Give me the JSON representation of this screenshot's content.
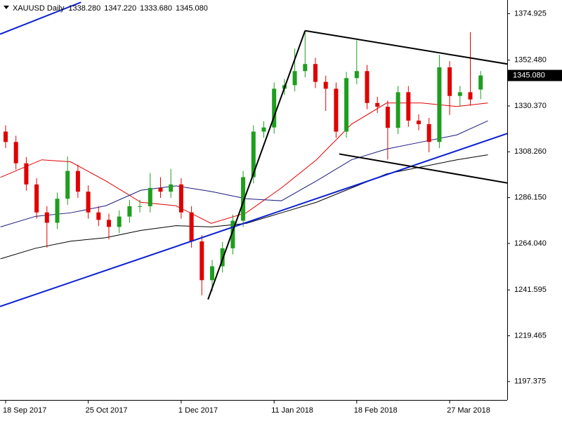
{
  "chart_data": {
    "type": "candlestick",
    "title": "XAUUSD Daily",
    "header_values": [
      {
        "value": 1338.28,
        "label": "1338.280"
      },
      {
        "value": 1347.22,
        "label": "1347.220"
      },
      {
        "value": 1333.68,
        "label": "1333.680"
      },
      {
        "value": 1345.08,
        "label": "1345.080"
      }
    ],
    "last_price": {
      "value": 1345.08,
      "label": "1345.080"
    },
    "categories": [
      "18 Sep 2017",
      null,
      null,
      null,
      null,
      null,
      null,
      null,
      "25 Oct 2017",
      null,
      null,
      null,
      null,
      null,
      null,
      null,
      null,
      "1 Dec 2017",
      null,
      null,
      null,
      null,
      null,
      null,
      null,
      null,
      "11 Jan 2018",
      null,
      null,
      null,
      null,
      null,
      null,
      null,
      "18 Feb 2018",
      null,
      null,
      null,
      null,
      null,
      null,
      null,
      null,
      "27 Mar 2018",
      null,
      null,
      null
    ],
    "open": [
      1318,
      1313,
      1302.7,
      1292.5,
      1279,
      1274,
      1285.6,
      1299,
      1289,
      1279,
      1275.4,
      1272,
      1277,
      1282,
      1282,
      1290.8,
      1289,
      1292.5,
      1279,
      1265,
      1246.3,
      1253,
      1261.7,
      1275,
      1296,
      1318,
      1320,
      1338.7,
      1340.4,
      1347.2,
      1350.6,
      1342,
      1338.7,
      1318,
      1343.8,
      1347.2,
      1331.8,
      1330,
      1319.8,
      1337,
      1323.3,
      1321.6,
      1313,
      1349,
      1335.2,
      1337,
      1338.28
    ],
    "high": [
      1321,
      1316,
      1305.7,
      1295.5,
      1282,
      1288.6,
      1306,
      1302,
      1292,
      1282,
      1278.4,
      1280,
      1285,
      1285,
      1298,
      1296,
      1300,
      1295.5,
      1282,
      1268,
      1256,
      1264.7,
      1278,
      1299,
      1321,
      1323,
      1341.7,
      1343.4,
      1358,
      1366.7,
      1353.6,
      1345,
      1341.7,
      1346.8,
      1362,
      1350.2,
      1334.8,
      1333,
      1340,
      1340,
      1326.3,
      1324.6,
      1355,
      1352,
      1340,
      1366,
      1347.22
    ],
    "low": [
      1310,
      1299.7,
      1289.5,
      1276,
      1262,
      1271,
      1282.6,
      1286,
      1276,
      1272.4,
      1266,
      1269,
      1274,
      1279,
      1279,
      1286,
      1286,
      1276,
      1262,
      1239,
      1241,
      1250,
      1258.7,
      1272,
      1293,
      1315,
      1317,
      1335.7,
      1337.4,
      1344.2,
      1339,
      1328,
      1315,
      1315,
      1340.8,
      1328.8,
      1327,
      1304.5,
      1316.8,
      1320.3,
      1318.6,
      1308,
      1310,
      1326,
      1330,
      1330.5,
      1333.68
    ],
    "close": [
      1313,
      1302.7,
      1292.5,
      1279,
      1274,
      1285.6,
      1299,
      1289,
      1279,
      1275.4,
      1272,
      1277,
      1282,
      1282,
      1290.8,
      1289,
      1292.5,
      1279,
      1265,
      1246.3,
      1253,
      1261.7,
      1275,
      1296,
      1318,
      1320,
      1338.7,
      1340.4,
      1347.2,
      1350.6,
      1342,
      1338.7,
      1318,
      1343.8,
      1347.2,
      1331.8,
      1330,
      1319.8,
      1337,
      1323.3,
      1321.6,
      1313,
      1349,
      1335.2,
      1337,
      1333.5,
      1345.08
    ],
    "up_color": "#1e9e1e",
    "down_color": "#e00000",
    "overlays": [
      {
        "color": "#e00000",
        "x": [
          -0.5,
          3.5,
          6.3,
          9.7,
          13.1,
          16.5,
          19.9,
          23.3,
          26.7,
          30.1,
          33.5,
          36.9,
          40.3,
          43.7,
          46.7
        ],
        "values": [
          1295.9,
          1304.4,
          1303.4,
          1294.2,
          1283.9,
          1282.2,
          1273.7,
          1278.8,
          1290.8,
          1304.4,
          1321.6,
          1331.8,
          1331.8,
          1330.1,
          1331.8
        ]
      },
      {
        "color": "#1a1a80",
        "x": [
          -0.5,
          2.9,
          6.3,
          9.7,
          13.1,
          16.5,
          19.9,
          23.3,
          26.7,
          30.1,
          33.5,
          36.9,
          40.3,
          43.7,
          46.7
        ],
        "values": [
          1272,
          1277.1,
          1278.8,
          1282.2,
          1289.7,
          1291.8,
          1289.1,
          1285.6,
          1284.6,
          1294.2,
          1304.4,
          1309.6,
          1313,
          1316.4,
          1323.2
        ]
      },
      {
        "color": "#000000",
        "x": [
          -0.5,
          2.9,
          6.3,
          9.7,
          13.1,
          16.5,
          19.9,
          23.3,
          26.7,
          30.1,
          33.5,
          36.9,
          40.3,
          43.7,
          46.7
        ],
        "values": [
          1256.6,
          1261.7,
          1265.1,
          1266.8,
          1270.3,
          1272.6,
          1272,
          1273.7,
          1278.8,
          1283.9,
          1290.8,
          1297.6,
          1301,
          1304.4,
          1306.8
        ]
      }
    ],
    "trendlines": [
      {
        "color": "#0a1fd0",
        "x": [
          -0.54,
          48.6
        ],
        "values": [
          1233.6,
          1317.1
        ]
      },
      {
        "color": "#0a1fd0",
        "x": [
          -0.54,
          7.3
        ],
        "values": [
          1365,
          1380.4
        ]
      },
      {
        "color": "#000000",
        "x": [
          19.6,
          29.0
        ],
        "values": [
          1237,
          1366.7
        ]
      },
      {
        "color": "#000000",
        "x": [
          29.0,
          48.6
        ],
        "values": [
          1366.7,
          1350.6
        ]
      },
      {
        "color": "#000000",
        "x": [
          32.3,
          48.6
        ],
        "values": [
          1307.2,
          1293.2
        ]
      }
    ],
    "ylim": [
      1188.5,
      1381.5
    ],
    "yticks": [
      1374.925,
      {
        "value": 1352.48,
        "label": "1352.480"
      },
      {
        "value": 1330.37,
        "label": "1330.370"
      },
      {
        "value": 1308.26,
        "label": "1308.260"
      },
      {
        "value": 1286.15,
        "label": "1286.150"
      },
      {
        "value": 1264.04,
        "label": "1264.040"
      },
      1241.595,
      1219.465,
      1197.375
    ]
  }
}
